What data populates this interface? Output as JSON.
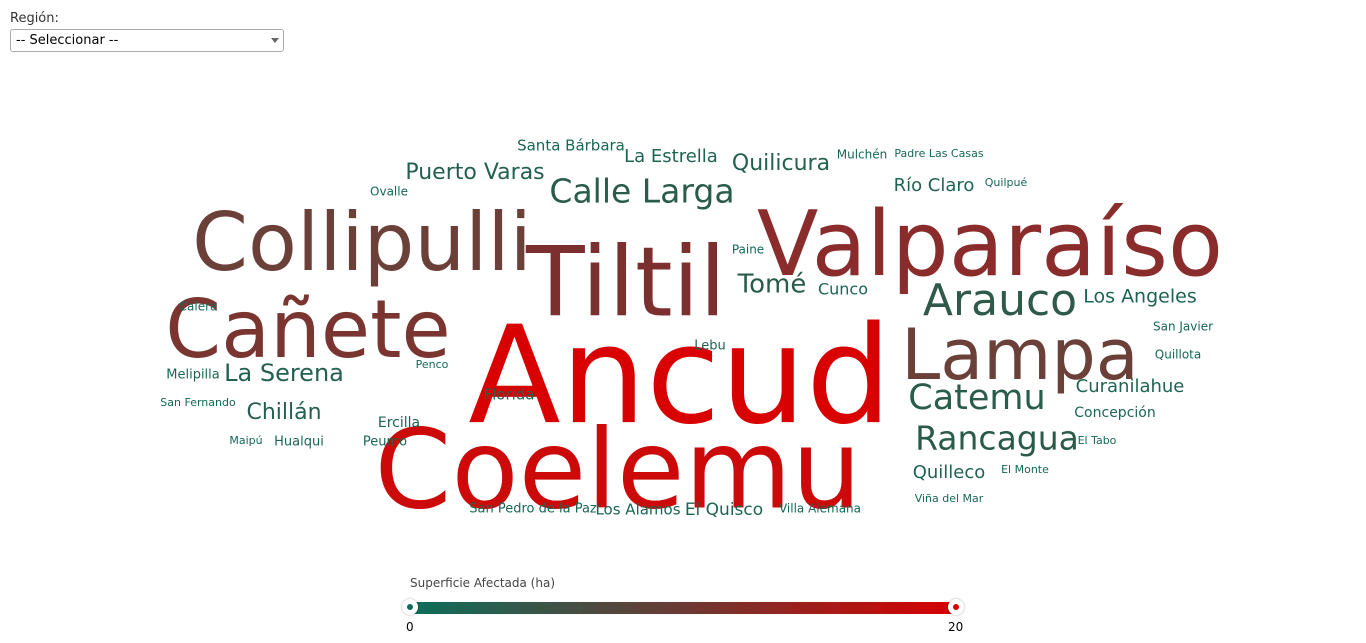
{
  "filter": {
    "label": "Región:",
    "selected": "-- Seleccionar --"
  },
  "legend": {
    "title": "Superficie Afectada (ha)",
    "min_label": "0",
    "max_label": "20",
    "low_color": "#0c6e5a",
    "mid_color": "#6b3a33",
    "high_color": "#d80000"
  },
  "chart_data": {
    "type": "wordcloud",
    "title": "",
    "color_scale": {
      "min": 0,
      "max": 20,
      "colors": [
        "#0c6e5a",
        "#6b3a33",
        "#d80000"
      ]
    },
    "words": [
      {
        "text": "Ancud",
        "value": 20,
        "color": "#d80000"
      },
      {
        "text": "Coelemu",
        "value": 18,
        "color": "#cc0a0a"
      },
      {
        "text": "Tiltil",
        "value": 15,
        "color": "#7c2f2f"
      },
      {
        "text": "Valparaíso",
        "value": 14,
        "color": "#8a2c2c"
      },
      {
        "text": "Collipulli",
        "value": 12,
        "color": "#6b4038"
      },
      {
        "text": "Cañete",
        "value": 12,
        "color": "#7a3530"
      },
      {
        "text": "Lampa",
        "value": 11,
        "color": "#6a4038"
      },
      {
        "text": "Arauco",
        "value": 5,
        "color": "#2f5a4a"
      },
      {
        "text": "Rancagua",
        "value": 4,
        "color": "#2a5a48"
      },
      {
        "text": "Catemu",
        "value": 4,
        "color": "#2a5c4a"
      },
      {
        "text": "Calle Larga",
        "value": 4,
        "color": "#2a5c4a"
      },
      {
        "text": "Tomé",
        "value": 3,
        "color": "#2a5c4a"
      },
      {
        "text": "La Serena",
        "value": 3,
        "color": "#246050"
      },
      {
        "text": "Puerto Varas",
        "value": 3,
        "color": "#246050"
      },
      {
        "text": "Quilicura",
        "value": 3,
        "color": "#246050"
      },
      {
        "text": "Chillán",
        "value": 3,
        "color": "#246050"
      },
      {
        "text": "Los Angeles",
        "value": 2,
        "color": "#1f6452"
      },
      {
        "text": "Curanilahue",
        "value": 2,
        "color": "#1f6452"
      },
      {
        "text": "Quilleco",
        "value": 2,
        "color": "#1f6452"
      },
      {
        "text": "El Quisco",
        "value": 2,
        "color": "#1f6452"
      },
      {
        "text": "Río Claro",
        "value": 2,
        "color": "#1f6452"
      },
      {
        "text": "La Estrella",
        "value": 2,
        "color": "#1f6452"
      },
      {
        "text": "Santa Bárbara",
        "value": 1,
        "color": "#1a6654"
      },
      {
        "text": "Cunco",
        "value": 1,
        "color": "#1a6654"
      },
      {
        "text": "Los Alamos",
        "value": 1,
        "color": "#1a6654"
      },
      {
        "text": "Concepción",
        "value": 1,
        "color": "#1a6654"
      },
      {
        "text": "Florida",
        "value": 1,
        "color": "#1a6654"
      },
      {
        "text": "Ercilla",
        "value": 1,
        "color": "#1a6654"
      },
      {
        "text": "Peumo",
        "value": 1,
        "color": "#1a6654"
      },
      {
        "text": "Hualqui",
        "value": 1,
        "color": "#1a6654"
      },
      {
        "text": "San Pedro de la Paz",
        "value": 1,
        "color": "#1a6654"
      },
      {
        "text": "Lebu",
        "value": 1,
        "color": "#1a6654"
      },
      {
        "text": "Melipilla",
        "value": 1,
        "color": "#1a6654"
      },
      {
        "text": "Mulchén",
        "value": 0.5,
        "color": "#156856"
      },
      {
        "text": "Padre Las Casas",
        "value": 0.5,
        "color": "#156856"
      },
      {
        "text": "Quilpué",
        "value": 0.5,
        "color": "#156856"
      },
      {
        "text": "Ovalle",
        "value": 0.5,
        "color": "#156856"
      },
      {
        "text": "Paine",
        "value": 0.5,
        "color": "#156856"
      },
      {
        "text": "Calera",
        "value": 0.5,
        "color": "#156856"
      },
      {
        "text": "San Javier",
        "value": 0.5,
        "color": "#156856"
      },
      {
        "text": "Quillota",
        "value": 0.5,
        "color": "#156856"
      },
      {
        "text": "Penco",
        "value": 0.5,
        "color": "#156856"
      },
      {
        "text": "San Fernando",
        "value": 0.5,
        "color": "#156856"
      },
      {
        "text": "Maipú",
        "value": 0.5,
        "color": "#156856"
      },
      {
        "text": "El Tabo",
        "value": 0.5,
        "color": "#156856"
      },
      {
        "text": "El Monte",
        "value": 0.5,
        "color": "#156856"
      },
      {
        "text": "Viña del Mar",
        "value": 0.5,
        "color": "#156856"
      },
      {
        "text": "Villa Alemana",
        "value": 0.5,
        "color": "#156856"
      }
    ]
  }
}
